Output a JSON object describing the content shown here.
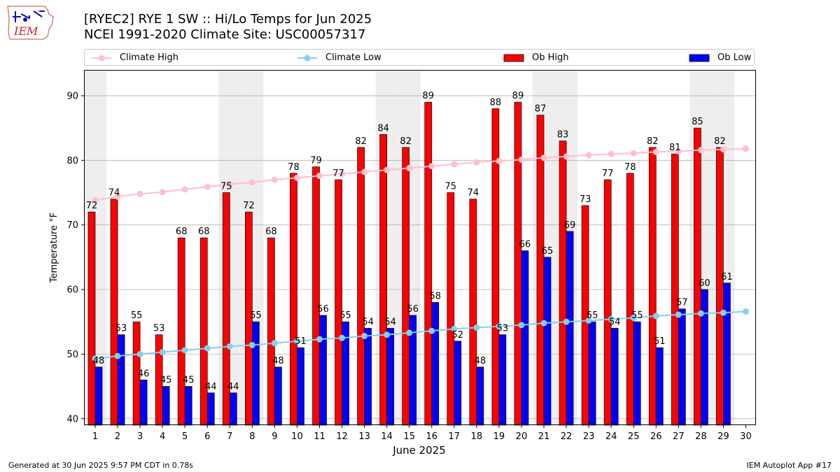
{
  "header": {
    "title_line1": "[RYEC2] RYE 1 SW :: Hi/Lo Temps for Jun 2025",
    "title_line2": "NCEI 1991-2020 Climate Site: USC00057317",
    "logo_text": "IEM"
  },
  "legend": {
    "climate_high": "Climate High",
    "climate_low": "Climate Low",
    "ob_high": "Ob High",
    "ob_low": "Ob Low"
  },
  "footer": {
    "left": "Generated at 30 Jun 2025 9:57 PM CDT in 0.78s",
    "right": "IEM Autoplot App #17"
  },
  "colors": {
    "ob_high": "#ff0000",
    "ob_low": "#0000ff",
    "climate_high": "#ffc0cb",
    "climate_low": "#87ceeb",
    "weekend_shade": "#eeeeee",
    "grid": "#b0b0b0"
  },
  "chart_data": {
    "type": "bar",
    "xlabel": "June 2025",
    "ylabel": "Temperature °F",
    "ylim": [
      39,
      94
    ],
    "yticks": [
      40,
      50,
      60,
      70,
      80,
      90
    ],
    "grid": "horizontal",
    "legend_position": "top",
    "days": [
      1,
      2,
      3,
      4,
      5,
      6,
      7,
      8,
      9,
      10,
      11,
      12,
      13,
      14,
      15,
      16,
      17,
      18,
      19,
      20,
      21,
      22,
      23,
      24,
      25,
      26,
      27,
      28,
      29,
      30
    ],
    "shaded_days": [
      1,
      7,
      8,
      14,
      15,
      21,
      22,
      28,
      29
    ],
    "series": [
      {
        "name": "Ob High",
        "kind": "bar",
        "values": [
          72,
          74,
          55,
          53,
          68,
          68,
          75,
          72,
          68,
          78,
          79,
          77,
          82,
          84,
          82,
          89,
          75,
          74,
          88,
          89,
          87,
          83,
          73,
          77,
          78,
          82,
          81,
          85,
          82,
          null
        ]
      },
      {
        "name": "Ob Low",
        "kind": "bar",
        "values": [
          48,
          53,
          46,
          45,
          45,
          44,
          44,
          55,
          48,
          51,
          56,
          55,
          54,
          54,
          56,
          58,
          52,
          48,
          53,
          66,
          65,
          69,
          55,
          54,
          55,
          51,
          57,
          60,
          61,
          null
        ]
      },
      {
        "name": "Climate High",
        "kind": "line",
        "values": [
          73.8,
          74.4,
          74.8,
          75.1,
          75.5,
          75.9,
          76.3,
          76.6,
          77.0,
          77.3,
          77.6,
          77.9,
          78.2,
          78.5,
          78.8,
          79.1,
          79.4,
          79.7,
          79.9,
          80.1,
          80.4,
          80.6,
          80.8,
          81.0,
          81.1,
          81.3,
          81.4,
          81.6,
          81.7,
          81.8
        ]
      },
      {
        "name": "Climate Low",
        "kind": "line",
        "values": [
          49.3,
          49.7,
          50.0,
          50.3,
          50.6,
          50.9,
          51.2,
          51.4,
          51.7,
          52.0,
          52.3,
          52.5,
          52.8,
          53.0,
          53.3,
          53.6,
          53.9,
          54.1,
          54.3,
          54.5,
          54.8,
          55.0,
          55.2,
          55.4,
          55.6,
          55.9,
          56.1,
          56.3,
          56.4,
          56.6
        ]
      }
    ]
  }
}
